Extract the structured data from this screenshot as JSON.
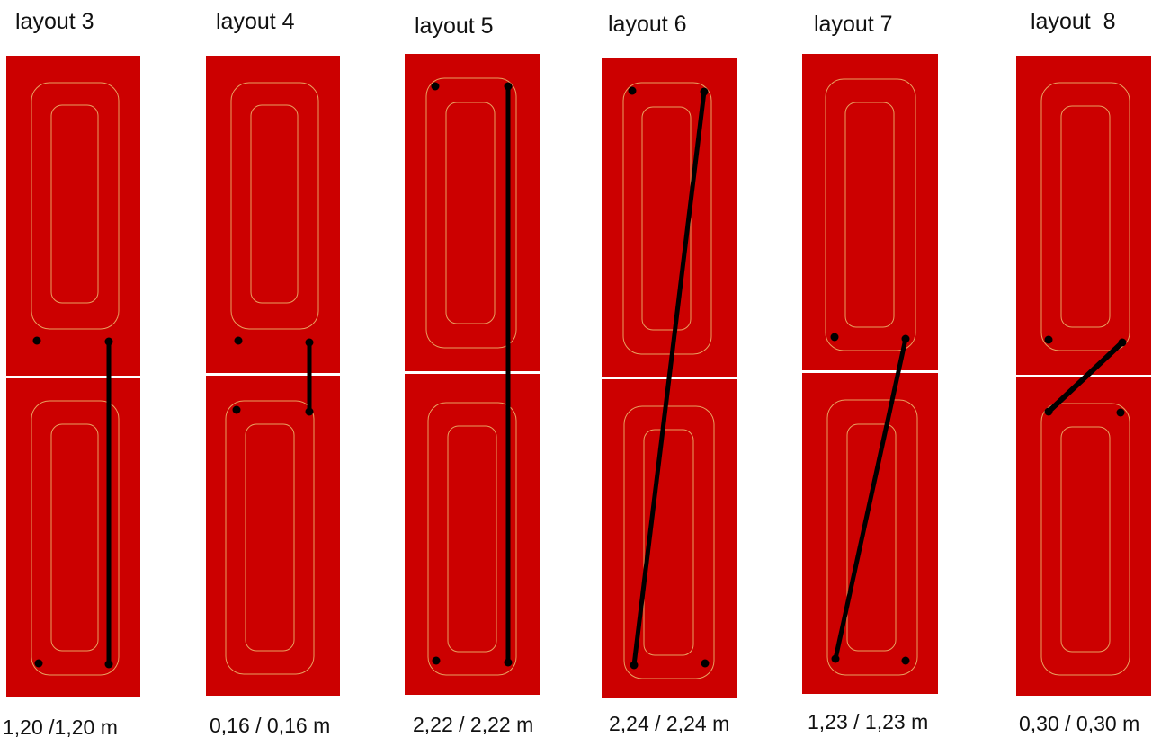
{
  "layouts": [
    {
      "title": "layout 3",
      "caption": "1,20 /1,20 m"
    },
    {
      "title": "layout 4",
      "caption": "0,16 / 0,16 m"
    },
    {
      "title": "layout 5",
      "caption": "2,22 / 2,22 m"
    },
    {
      "title": "layout 6",
      "caption": "2,24 / 2,24 m"
    },
    {
      "title": "layout 7",
      "caption": "1,23 / 1,23 m"
    },
    {
      "title": "layout  8",
      "caption": "0,30 / 0,30 m"
    }
  ],
  "colors": {
    "panel": "#cc0000",
    "coil_line": "#e8a060",
    "connection": "#000000",
    "divider": "#ffffff"
  }
}
